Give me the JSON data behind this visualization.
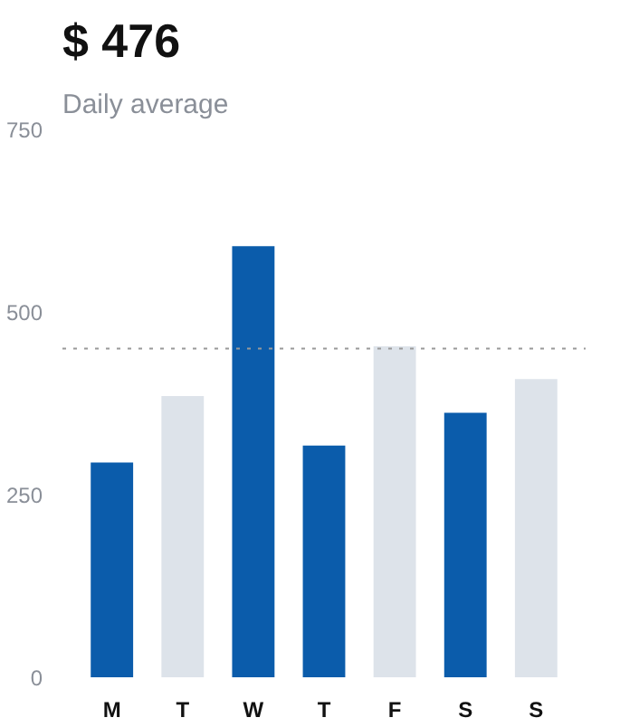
{
  "chart_data": {
    "type": "bar",
    "title": "$ 476",
    "subtitle": "Daily average",
    "categories": [
      "M",
      "T",
      "W",
      "T",
      "F",
      "S",
      "S"
    ],
    "values": [
      294,
      385,
      590,
      317,
      453,
      362,
      408
    ],
    "colors": [
      "#0b5cab",
      "#dde3ea",
      "#0b5cab",
      "#0b5cab",
      "#dde3ea",
      "#0b5cab",
      "#dde3ea"
    ],
    "ylim": [
      0,
      750
    ],
    "yticks": [
      0,
      250,
      500,
      750
    ],
    "grid": false,
    "ref_lines": [
      {
        "axis": "y",
        "value": 450,
        "label": null,
        "color": "#999999",
        "line_style": "dotted"
      }
    ]
  }
}
